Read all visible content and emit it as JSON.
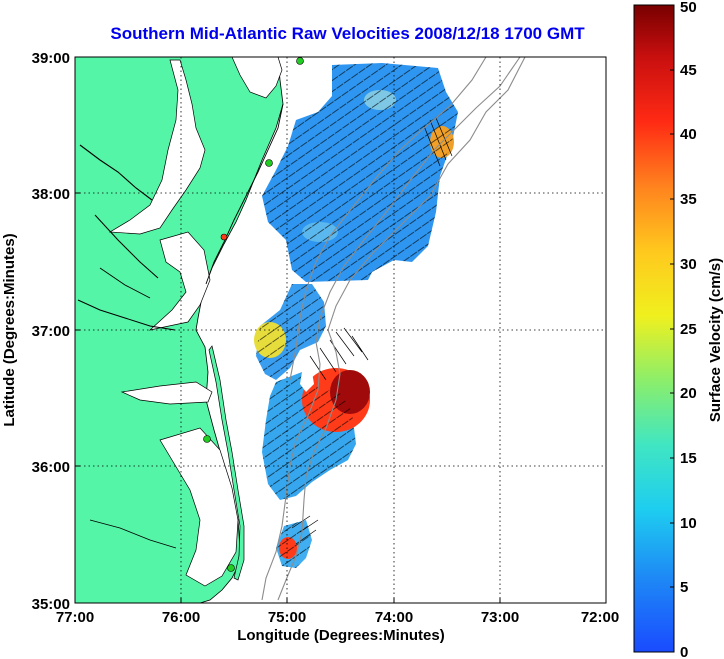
{
  "title": "Southern Mid-Atlantic Raw Velocities 2008/12/18 1700 GMT",
  "xlabel": "Longitude (Degrees:Minutes)",
  "ylabel": "Latitude (Degrees:Minutes)",
  "colorbar_label": "Surface Velocity (cm/s)",
  "chart_data": {
    "type": "heatmap",
    "x_ticks": [
      "77:00",
      "76:00",
      "75:00",
      "74:00",
      "73:00",
      "72:00"
    ],
    "y_ticks": [
      "39:00",
      "38:00",
      "37:00",
      "36:00",
      "35:00"
    ],
    "xlim": [
      -77,
      -72
    ],
    "ylim": [
      35,
      39
    ],
    "colorbar": {
      "min": 0,
      "max": 50,
      "ticks": [
        "0",
        "5",
        "10",
        "15",
        "20",
        "25",
        "30",
        "35",
        "40",
        "45",
        "50"
      ]
    },
    "grid": true,
    "colors": {
      "land": "#55f5a7",
      "coastline": "#000000",
      "bathymetry": "#8c8c8c",
      "stations": "#22cc22"
    }
  }
}
